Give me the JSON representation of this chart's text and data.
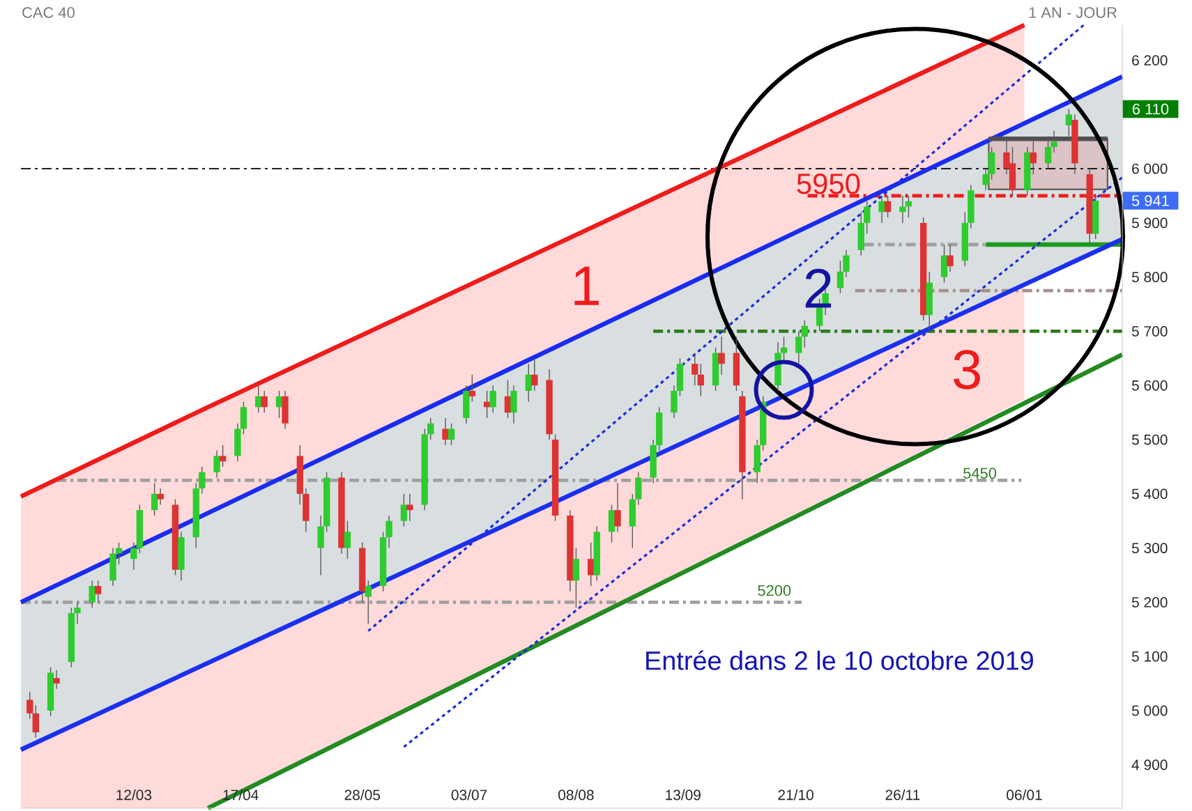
{
  "chart_data": {
    "type": "candlestick",
    "title": "CAC 40",
    "subtitle": "1 AN - JOUR",
    "x": [
      "2019-02-05",
      "2019-02-07",
      "2019-02-12",
      "2019-02-14",
      "2019-02-19",
      "2019-02-21",
      "2019-02-26",
      "2019-02-28",
      "2019-03-05",
      "2019-03-07",
      "2019-03-12",
      "2019-03-14",
      "2019-03-19",
      "2019-03-21",
      "2019-03-26",
      "2019-03-28",
      "2019-04-02",
      "2019-04-04",
      "2019-04-09",
      "2019-04-11",
      "2019-04-16",
      "2019-04-18",
      "2019-04-23",
      "2019-04-25",
      "2019-04-30",
      "2019-05-02",
      "2019-05-07",
      "2019-05-09",
      "2019-05-14",
      "2019-05-16",
      "2019-05-21",
      "2019-05-23",
      "2019-05-28",
      "2019-05-30",
      "2019-06-04",
      "2019-06-06",
      "2019-06-11",
      "2019-06-13",
      "2019-06-18",
      "2019-06-20",
      "2019-06-25",
      "2019-06-27",
      "2019-07-02",
      "2019-07-04",
      "2019-07-09",
      "2019-07-11",
      "2019-07-16",
      "2019-07-18",
      "2019-07-23",
      "2019-07-25",
      "2019-07-30",
      "2019-08-01",
      "2019-08-06",
      "2019-08-08",
      "2019-08-13",
      "2019-08-15",
      "2019-08-20",
      "2019-08-22",
      "2019-08-27",
      "2019-08-29",
      "2019-09-03",
      "2019-09-05",
      "2019-09-10",
      "2019-09-12",
      "2019-09-17",
      "2019-09-19",
      "2019-09-24",
      "2019-09-26",
      "2019-10-01",
      "2019-10-03",
      "2019-10-08",
      "2019-10-10",
      "2019-10-15",
      "2019-10-17",
      "2019-10-22",
      "2019-10-24",
      "2019-10-29",
      "2019-10-31",
      "2019-11-05",
      "2019-11-07",
      "2019-11-12",
      "2019-11-14",
      "2019-11-19",
      "2019-11-21",
      "2019-11-26",
      "2019-11-28",
      "2019-12-03",
      "2019-12-05",
      "2019-12-10",
      "2019-12-12",
      "2019-12-17",
      "2019-12-19",
      "2019-12-24",
      "2019-12-26",
      "2019-12-31",
      "2020-01-02",
      "2020-01-07",
      "2020-01-09",
      "2020-01-14",
      "2020-01-16",
      "2020-01-21",
      "2020-01-23",
      "2020-01-28",
      "2020-01-30"
    ],
    "ohlc": [
      [
        5020,
        5035,
        4985,
        4995
      ],
      [
        4995,
        5010,
        4950,
        4960
      ],
      [
        5000,
        5080,
        4990,
        5070
      ],
      [
        5060,
        5075,
        5040,
        5050
      ],
      [
        5090,
        5190,
        5080,
        5180
      ],
      [
        5180,
        5200,
        5160,
        5190
      ],
      [
        5200,
        5240,
        5190,
        5230
      ],
      [
        5230,
        5240,
        5200,
        5215
      ],
      [
        5240,
        5300,
        5230,
        5290
      ],
      [
        5290,
        5310,
        5270,
        5300
      ],
      [
        5280,
        5310,
        5260,
        5300
      ],
      [
        5300,
        5380,
        5290,
        5370
      ],
      [
        5370,
        5420,
        5360,
        5400
      ],
      [
        5400,
        5410,
        5380,
        5390
      ],
      [
        5380,
        5390,
        5250,
        5260
      ],
      [
        5260,
        5330,
        5240,
        5320
      ],
      [
        5320,
        5420,
        5300,
        5410
      ],
      [
        5410,
        5450,
        5400,
        5440
      ],
      [
        5440,
        5480,
        5430,
        5470
      ],
      [
        5470,
        5490,
        5450,
        5460
      ],
      [
        5470,
        5530,
        5460,
        5520
      ],
      [
        5520,
        5570,
        5510,
        5560
      ],
      [
        5560,
        5600,
        5550,
        5580
      ],
      [
        5580,
        5590,
        5550,
        5560
      ],
      [
        5560,
        5590,
        5540,
        5580
      ],
      [
        5580,
        5590,
        5520,
        5530
      ],
      [
        5470,
        5490,
        5380,
        5400
      ],
      [
        5400,
        5410,
        5330,
        5350
      ],
      [
        5300,
        5360,
        5250,
        5340
      ],
      [
        5340,
        5440,
        5330,
        5430
      ],
      [
        5430,
        5440,
        5290,
        5300
      ],
      [
        5300,
        5350,
        5280,
        5330
      ],
      [
        5300,
        5310,
        5200,
        5220
      ],
      [
        5210,
        5240,
        5160,
        5230
      ],
      [
        5230,
        5330,
        5220,
        5320
      ],
      [
        5320,
        5360,
        5300,
        5350
      ],
      [
        5350,
        5400,
        5340,
        5380
      ],
      [
        5380,
        5400,
        5350,
        5370
      ],
      [
        5380,
        5520,
        5370,
        5510
      ],
      [
        5510,
        5540,
        5500,
        5530
      ],
      [
        5520,
        5540,
        5490,
        5500
      ],
      [
        5500,
        5530,
        5490,
        5520
      ],
      [
        5540,
        5600,
        5530,
        5590
      ],
      [
        5590,
        5620,
        5570,
        5580
      ],
      [
        5570,
        5590,
        5540,
        5560
      ],
      [
        5560,
        5600,
        5550,
        5590
      ],
      [
        5580,
        5610,
        5540,
        5550
      ],
      [
        5550,
        5600,
        5530,
        5590
      ],
      [
        5590,
        5640,
        5570,
        5620
      ],
      [
        5620,
        5650,
        5590,
        5600
      ],
      [
        5610,
        5630,
        5500,
        5510
      ],
      [
        5500,
        5510,
        5350,
        5360
      ],
      [
        5360,
        5370,
        5220,
        5240
      ],
      [
        5240,
        5300,
        5190,
        5280
      ],
      [
        5280,
        5310,
        5230,
        5250
      ],
      [
        5250,
        5340,
        5240,
        5330
      ],
      [
        5330,
        5380,
        5310,
        5370
      ],
      [
        5370,
        5420,
        5330,
        5340
      ],
      [
        5340,
        5400,
        5300,
        5390
      ],
      [
        5390,
        5440,
        5380,
        5430
      ],
      [
        5430,
        5500,
        5420,
        5490
      ],
      [
        5490,
        5560,
        5480,
        5550
      ],
      [
        5550,
        5600,
        5540,
        5590
      ],
      [
        5590,
        5650,
        5580,
        5640
      ],
      [
        5640,
        5660,
        5600,
        5620
      ],
      [
        5620,
        5640,
        5580,
        5600
      ],
      [
        5600,
        5670,
        5590,
        5660
      ],
      [
        5660,
        5690,
        5620,
        5640
      ],
      [
        5660,
        5690,
        5590,
        5600
      ],
      [
        5580,
        5590,
        5390,
        5440
      ],
      [
        5440,
        5500,
        5420,
        5490
      ],
      [
        5490,
        5580,
        5480,
        5570
      ],
      [
        5600,
        5680,
        5590,
        5660
      ],
      [
        5660,
        5690,
        5640,
        5670
      ],
      [
        5660,
        5700,
        5640,
        5690
      ],
      [
        5690,
        5720,
        5670,
        5710
      ],
      [
        5710,
        5760,
        5700,
        5750
      ],
      [
        5750,
        5780,
        5730,
        5770
      ],
      [
        5780,
        5830,
        5770,
        5810
      ],
      [
        5810,
        5850,
        5800,
        5840
      ],
      [
        5850,
        5920,
        5840,
        5900
      ],
      [
        5900,
        5940,
        5880,
        5930
      ],
      [
        5920,
        5950,
        5900,
        5940
      ],
      [
        5940,
        5950,
        5910,
        5920
      ],
      [
        5920,
        5950,
        5900,
        5930
      ],
      [
        5930,
        5950,
        5910,
        5940
      ],
      [
        5900,
        5910,
        5720,
        5730
      ],
      [
        5730,
        5810,
        5700,
        5790
      ],
      [
        5800,
        5860,
        5790,
        5840
      ],
      [
        5840,
        5860,
        5810,
        5820
      ],
      [
        5830,
        5920,
        5820,
        5900
      ],
      [
        5900,
        5970,
        5890,
        5960
      ],
      [
        5970,
        6000,
        5960,
        5990
      ],
      [
        5990,
        6040,
        5980,
        6030
      ],
      [
        6030,
        6060,
        5990,
        6000
      ],
      [
        6010,
        6040,
        5950,
        5960
      ],
      [
        5960,
        6040,
        5950,
        6030
      ],
      [
        6030,
        6050,
        5990,
        6010
      ],
      [
        6010,
        6060,
        6000,
        6040
      ],
      [
        6040,
        6070,
        6030,
        6050
      ],
      [
        6080,
        6110,
        6060,
        6100
      ],
      [
        6090,
        6100,
        5990,
        6010
      ],
      [
        5990,
        6000,
        5860,
        5880
      ],
      [
        5880,
        5950,
        5870,
        5941
      ]
    ],
    "series": [
      {
        "type": "line",
        "color": "#ee1c1c",
        "line_style": "dashed",
        "x": [
          "2019-10-25",
          "2020-02-08"
        ],
        "values": [
          5950,
          5950
        ]
      },
      {
        "type": "line",
        "color": "#a0a0a0",
        "line_style": "dashed",
        "x": [
          "2019-02-14",
          "2020-01-05"
        ],
        "values": [
          5425,
          5425
        ]
      },
      {
        "type": "line",
        "color": "#a0a0a0",
        "line_style": "dashed",
        "x": [
          "2019-02-02",
          "2019-10-23"
        ],
        "values": [
          5200,
          5200
        ]
      },
      {
        "type": "line",
        "color": "#a0a0a0",
        "line_style": "dashed",
        "x": [
          "2019-11-13",
          "2019-12-24"
        ],
        "values": [
          5860,
          5860
        ]
      },
      {
        "type": "line",
        "color": "#a89090",
        "line_style": "dashed",
        "x": [
          "2019-11-10",
          "2020-02-08"
        ],
        "values": [
          5775,
          5775
        ]
      },
      {
        "type": "line",
        "color": "#2e7d1e",
        "line_style": "dashed",
        "x": [
          "2019-09-03",
          "2020-02-08"
        ],
        "values": [
          5700,
          5700
        ]
      },
      {
        "type": "line",
        "color": "#1f9a1f",
        "line_style": "solid",
        "x": [
          "2019-12-24",
          "2020-02-08"
        ],
        "values": [
          5860,
          5860
        ]
      },
      {
        "type": "scatter",
        "color": "#1414a0",
        "marker": "circle",
        "x": [
          "2019-10-17"
        ],
        "values": [
          5592
        ]
      },
      {
        "type": "line",
        "color": "#ee1c1c",
        "line_style": "solid",
        "x": [
          "2019-02-02",
          "2019-04-06",
          "2020-01-06"
        ],
        "values": [
          5395,
          5560,
          6265
        ],
        "lower": [
          4820,
          4820,
          5574
        ],
        "upper": [
          5395,
          5560,
          6265
        ]
      },
      {
        "type": "line",
        "color": "#1a2cf0",
        "line_style": "solid",
        "x": [
          "2019-02-02",
          "2020-02-08"
        ],
        "values": [
          5200,
          6170
        ],
        "lower": [
          4928,
          5870
        ],
        "upper": [
          5200,
          6170
        ]
      },
      {
        "type": "line",
        "color": "#1b30ee",
        "line_style": "solid",
        "x": [
          "2019-02-02",
          "2020-02-08"
        ],
        "values": [
          4928,
          5870
        ]
      },
      {
        "type": "line",
        "color": "#228b22",
        "line_style": "solid",
        "x": [
          "2019-04-06",
          "2020-02-08"
        ],
        "values": [
          4820,
          5657
        ]
      },
      {
        "type": "line",
        "color": "#1a2cd8",
        "line_style": "dotted",
        "x": [
          "2019-05-30",
          "2020-01-26"
        ],
        "values": [
          5147,
          6265
        ]
      },
      {
        "type": "line",
        "color": "#1a2cd8",
        "line_style": "dotted",
        "x": [
          "2019-06-11",
          "2020-02-08"
        ],
        "values": [
          4933,
          5984
        ]
      },
      {
        "type": "line",
        "color": "#505050",
        "line_style": "solid",
        "x": [
          "2019-12-25",
          "2020-02-03"
        ],
        "values": [
          6055,
          6055
        ],
        "lower": [
          5962,
          5962
        ],
        "upper": [
          6055,
          6055
        ]
      }
    ],
    "ref_lines": [
      {
        "axis": "y",
        "value": 6000,
        "color": "#000000",
        "line_style": "dashed"
      }
    ],
    "annotations": [
      "1",
      "2",
      "3",
      "Entrée dans 2 le 10 octobre 2019",
      {
        "text": "5950",
        "x": "2019-11-01",
        "y": 5950
      },
      {
        "text": "5450",
        "x": "2019-12-22",
        "y": 5425
      },
      "5200",
      {
        "text": "6 110",
        "y": 6110
      },
      {
        "text": "5 941",
        "y": 5941
      }
    ],
    "xlim": [
      "2019-02-02",
      "2020-02-08"
    ],
    "ylim": [
      4820,
      6265
    ],
    "xticks": [
      {
        "value": "2019-03-12",
        "label": "12/03"
      },
      {
        "value": "2019-04-17",
        "label": "17/04"
      },
      {
        "value": "2019-05-28",
        "label": "28/05"
      },
      {
        "value": "2019-07-03",
        "label": "03/07"
      },
      {
        "value": "2019-08-08",
        "label": "08/08"
      },
      {
        "value": "2019-09-13",
        "label": "13/09"
      },
      {
        "value": "2019-10-21",
        "label": "21/10"
      },
      {
        "value": "2019-11-26",
        "label": "26/11"
      },
      {
        "value": "2020-01-06",
        "label": "06/01"
      }
    ],
    "yticks": [
      {
        "value": 4900,
        "label": "4 900"
      },
      {
        "value": 5000,
        "label": "5 000"
      },
      {
        "value": 5100,
        "label": "5 100"
      },
      {
        "value": 5200,
        "label": "5 200"
      },
      {
        "value": 5300,
        "label": "5 300"
      },
      {
        "value": 5400,
        "label": "5 400"
      },
      {
        "value": 5500,
        "label": "5 500"
      },
      {
        "value": 5600,
        "label": "5 600"
      },
      {
        "value": 5700,
        "label": "5 700"
      },
      {
        "value": 5800,
        "label": "5 800"
      },
      {
        "value": 5900,
        "label": "5 900"
      },
      {
        "value": 6000,
        "label": "6 000"
      },
      {
        "value": 6200,
        "label": "6 200"
      }
    ]
  }
}
